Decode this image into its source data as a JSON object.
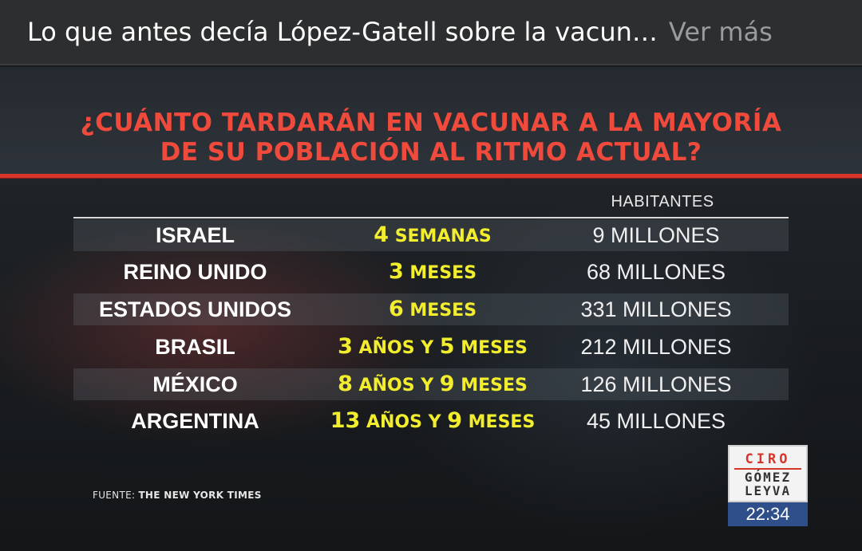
{
  "caption": {
    "text": "Lo que antes decía López-Gatell sobre la vacun…",
    "more": "Ver más"
  },
  "graphic": {
    "title_line1": "¿CUÁNTO TARDARÁN EN VACUNAR A LA MAYORÍA",
    "title_line2": "DE SU POBLACIÓN AL RITMO ACTUAL?",
    "col_inhabitants": "HABITANTES",
    "rows": [
      {
        "country": "ISRAEL",
        "time_num": "4",
        "time_unit": "SEMANAS",
        "inhabitants": "9 MILLONES"
      },
      {
        "country": "REINO UNIDO",
        "time_num": "3",
        "time_unit": "MESES",
        "inhabitants": "68 MILLONES"
      },
      {
        "country": "ESTADOS UNIDOS",
        "time_num": "6",
        "time_unit": "MESES",
        "inhabitants": "331 MILLONES"
      },
      {
        "country": "BRASIL",
        "time_years": "3",
        "time_mid": "AÑOS Y",
        "time_months": "5",
        "time_unit": "MESES",
        "inhabitants": "212 MILLONES"
      },
      {
        "country": "MÉXICO",
        "time_years": "8",
        "time_mid": "AÑOS Y",
        "time_months": "9",
        "time_unit": "MESES",
        "inhabitants": "126 MILLONES"
      },
      {
        "country": "ARGENTINA",
        "time_years": "13",
        "time_mid": "AÑOS Y",
        "time_months": "9",
        "time_unit": "MESES",
        "inhabitants": "45 MILLONES"
      }
    ],
    "source_label": "FUENTE:",
    "source_name": "THE NEW YORK TIMES",
    "logo": {
      "line1": "CIRO",
      "line2": "GÓMEZ",
      "line3": "LEYVA"
    },
    "clock": "22:34"
  }
}
